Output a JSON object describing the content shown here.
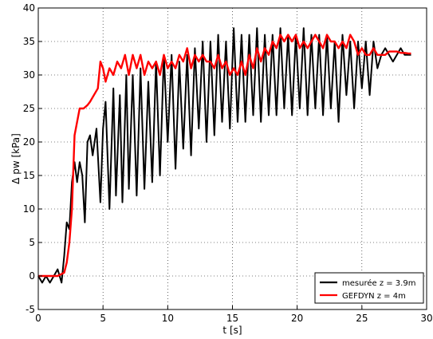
{
  "chart_data": {
    "type": "line",
    "xlabel": "t [s]",
    "ylabel": "Δ pw [kPa]",
    "xlim": [
      0,
      30
    ],
    "ylim": [
      -5,
      40
    ],
    "xticks": [
      0,
      5,
      10,
      15,
      20,
      25,
      30
    ],
    "yticks": [
      -5,
      0,
      5,
      10,
      15,
      20,
      25,
      30,
      35,
      40
    ],
    "grid": true,
    "legend_position": "bottom-right",
    "series": [
      {
        "name": "mesurée z = 3.9m",
        "color": "#000000",
        "x": [
          0.0,
          0.3,
          0.6,
          0.9,
          1.2,
          1.5,
          1.8,
          2.0,
          2.2,
          2.4,
          2.6,
          2.8,
          3.0,
          3.2,
          3.4,
          3.6,
          3.8,
          4.0,
          4.2,
          4.5,
          4.8,
          5.0,
          5.2,
          5.5,
          5.8,
          6.0,
          6.3,
          6.5,
          6.8,
          7.0,
          7.3,
          7.6,
          7.9,
          8.2,
          8.5,
          8.8,
          9.1,
          9.4,
          9.7,
          10.0,
          10.3,
          10.6,
          10.9,
          11.2,
          11.5,
          11.8,
          12.1,
          12.4,
          12.7,
          13.0,
          13.3,
          13.6,
          13.9,
          14.2,
          14.5,
          14.8,
          15.1,
          15.4,
          15.7,
          16.0,
          16.3,
          16.6,
          16.9,
          17.2,
          17.5,
          17.8,
          18.1,
          18.4,
          18.7,
          19.0,
          19.3,
          19.6,
          19.9,
          20.2,
          20.5,
          20.8,
          21.1,
          21.4,
          21.7,
          22.0,
          22.3,
          22.6,
          22.9,
          23.2,
          23.5,
          23.8,
          24.1,
          24.4,
          24.7,
          25.0,
          25.3,
          25.6,
          25.9,
          26.2,
          26.5,
          26.8,
          27.1,
          27.4,
          27.7,
          28.0,
          28.3,
          28.6,
          28.8
        ],
        "y": [
          0,
          -1,
          0,
          -1,
          0,
          1,
          -1,
          3,
          8,
          7,
          14,
          17,
          14,
          17,
          15,
          8,
          20,
          21,
          18,
          22,
          11,
          22,
          26,
          10,
          28,
          12,
          27,
          11,
          30,
          13,
          30,
          12,
          31,
          13,
          29,
          14,
          32,
          15,
          33,
          20,
          33,
          16,
          32,
          19,
          33,
          18,
          34,
          22,
          35,
          20,
          35,
          21,
          36,
          23,
          35,
          22,
          37,
          23,
          36,
          23,
          36,
          24,
          37,
          23,
          36,
          24,
          36,
          24,
          37,
          25,
          36,
          24,
          36,
          25,
          37,
          24,
          36,
          25,
          36,
          24,
          36,
          25,
          35,
          23,
          36,
          27,
          35,
          25,
          35,
          28,
          35,
          27,
          35,
          31,
          33,
          34,
          33,
          32,
          33,
          34,
          33,
          33,
          33
        ]
      },
      {
        "name": "GEFDYN z = 4m",
        "color": "#ff0000",
        "x": [
          0.0,
          0.5,
          1.0,
          1.5,
          2.0,
          2.2,
          2.4,
          2.6,
          2.8,
          3.0,
          3.2,
          3.5,
          3.8,
          4.0,
          4.3,
          4.6,
          4.8,
          5.0,
          5.2,
          5.5,
          5.8,
          6.1,
          6.4,
          6.7,
          7.0,
          7.3,
          7.6,
          7.9,
          8.2,
          8.5,
          8.8,
          9.1,
          9.4,
          9.7,
          10.0,
          10.3,
          10.6,
          10.9,
          11.2,
          11.5,
          11.8,
          12.1,
          12.4,
          12.7,
          13.0,
          13.3,
          13.6,
          13.9,
          14.2,
          14.5,
          14.8,
          15.1,
          15.4,
          15.7,
          16.0,
          16.3,
          16.6,
          16.9,
          17.2,
          17.5,
          17.8,
          18.1,
          18.4,
          18.7,
          19.0,
          19.3,
          19.6,
          19.9,
          20.2,
          20.5,
          20.8,
          21.1,
          21.4,
          21.7,
          22.0,
          22.3,
          22.6,
          22.9,
          23.2,
          23.5,
          23.8,
          24.1,
          24.4,
          24.7,
          25.0,
          25.3,
          25.6,
          25.9,
          26.2,
          26.5,
          26.8,
          27.1,
          27.4,
          27.7,
          28.0,
          28.3,
          28.6,
          28.8
        ],
        "y": [
          0,
          0,
          0,
          0,
          0.5,
          2,
          5,
          10,
          21,
          23,
          25,
          25,
          25.5,
          26,
          27,
          28,
          32,
          31,
          29,
          31,
          30,
          32,
          31,
          33,
          30,
          33,
          31,
          33,
          30,
          32,
          31,
          32,
          30,
          33,
          31,
          32,
          31,
          33,
          32,
          34,
          31,
          33,
          32,
          33,
          32,
          32,
          31,
          33,
          31,
          32,
          30,
          31,
          30,
          32,
          30,
          33,
          31,
          34,
          32,
          34,
          33,
          35,
          34,
          36,
          35,
          36,
          35,
          36,
          34,
          35,
          34,
          35,
          36,
          35,
          34,
          36,
          35,
          35,
          34,
          35,
          34,
          36,
          35,
          33,
          34,
          33,
          33,
          34,
          33,
          33,
          33,
          33.5,
          33.5,
          33.5,
          33.3,
          33.3,
          33.2,
          33.2
        ]
      }
    ]
  }
}
